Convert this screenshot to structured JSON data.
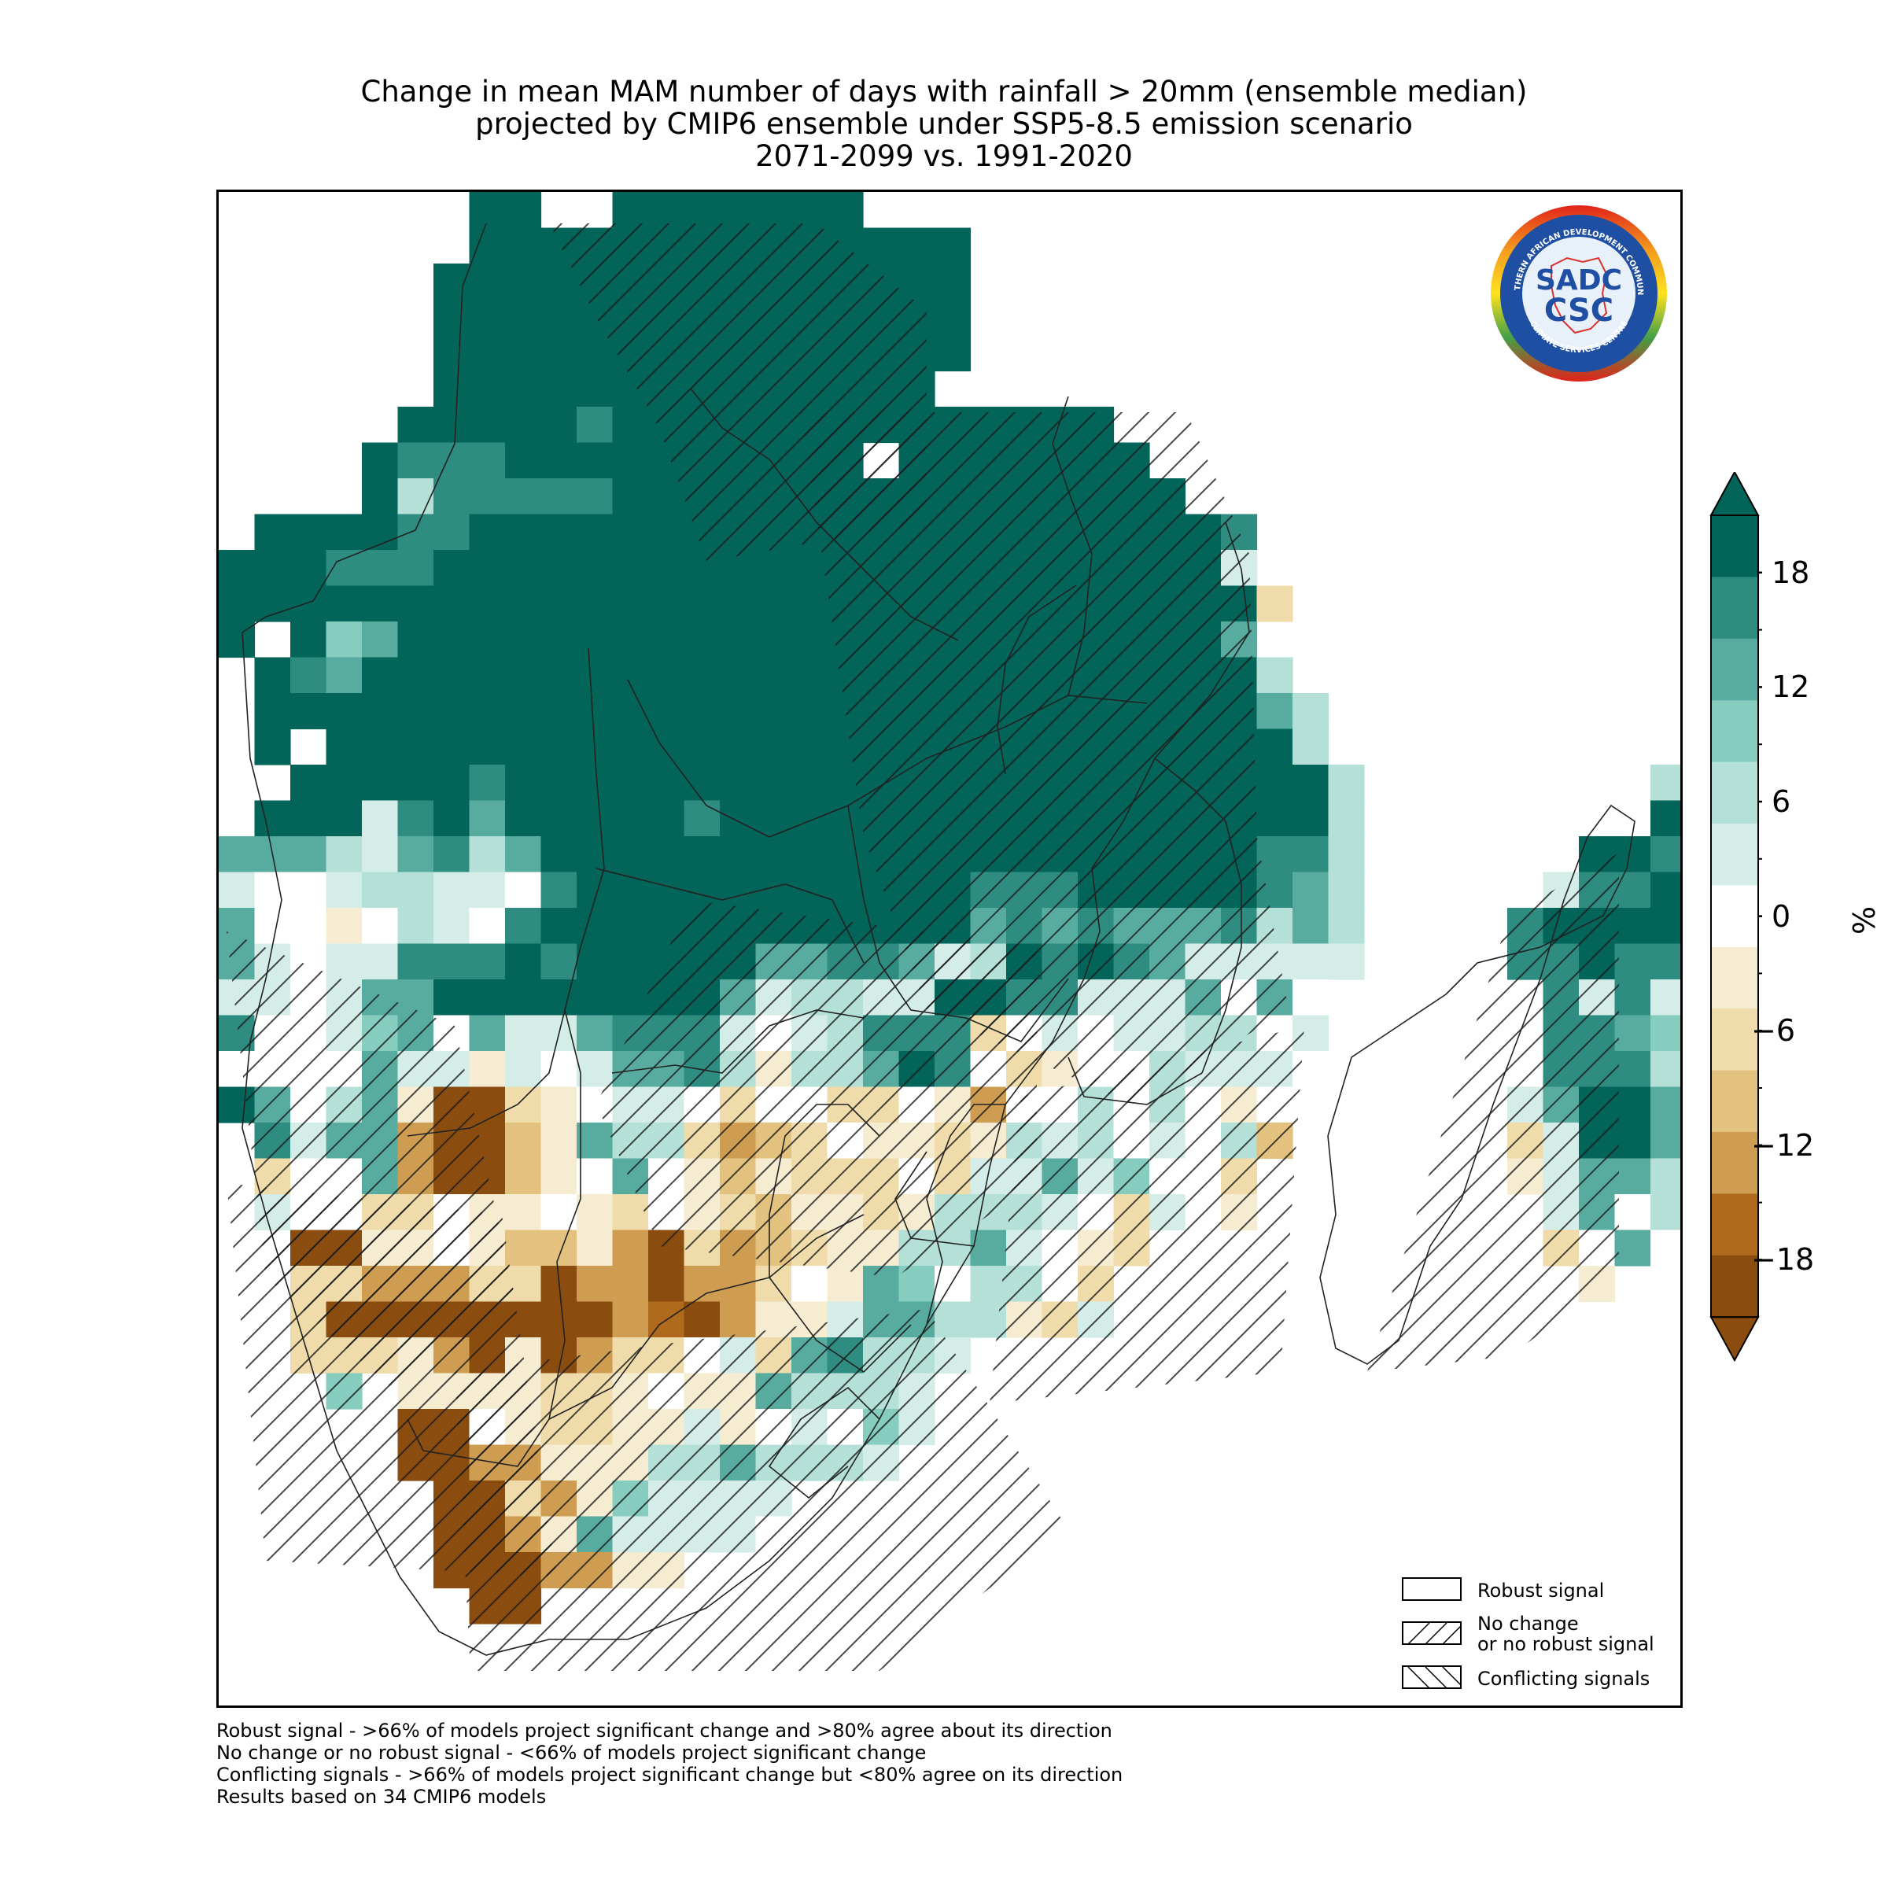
{
  "title_lines": [
    "Change in mean MAM number of days with rainfall > 20mm (ensemble median)",
    "projected by CMIP6 ensemble under SSP5-8.5 emission scenario",
    "2071-2099 vs. 1991-2020"
  ],
  "colorbar": {
    "unit": "%",
    "ticks": [
      "18",
      "12",
      "6",
      "0",
      "−6",
      "−12",
      "−18"
    ],
    "tick_values": [
      18,
      12,
      6,
      0,
      -6,
      -12,
      -18
    ],
    "range": [
      -21,
      21
    ],
    "extend": "both",
    "colors": [
      "#8b4d0f",
      "#b06a1d",
      "#cf9d52",
      "#e3c17e",
      "#efdcaa",
      "#f6ecd2",
      "#ffffff",
      "#d5ede8",
      "#b4e0d8",
      "#86cdbf",
      "#57ac9f",
      "#2f8c80",
      "#03645a"
    ]
  },
  "legend": {
    "robust": "Robust signal",
    "no_change_1": "No change",
    "no_change_2": "or no robust signal",
    "conflicting": "Conflicting signals"
  },
  "footnotes": [
    "Robust signal - >66% of models project significant change and >80% agree about its direction",
    "No change or no robust signal - <66% of models project significant change",
    "Conflicting signals - >66% of models project significant change but <80% agree on its direction",
    "Results based on 34 CMIP6 models"
  ],
  "logo": {
    "text_top": "SOUTHERN AFRICAN DEVELOPMENT COMMUNITY",
    "text_bottom": "CLIMATE SERVICES CENTRE",
    "mark_1": "SADC",
    "mark_2": "CSC"
  }
}
